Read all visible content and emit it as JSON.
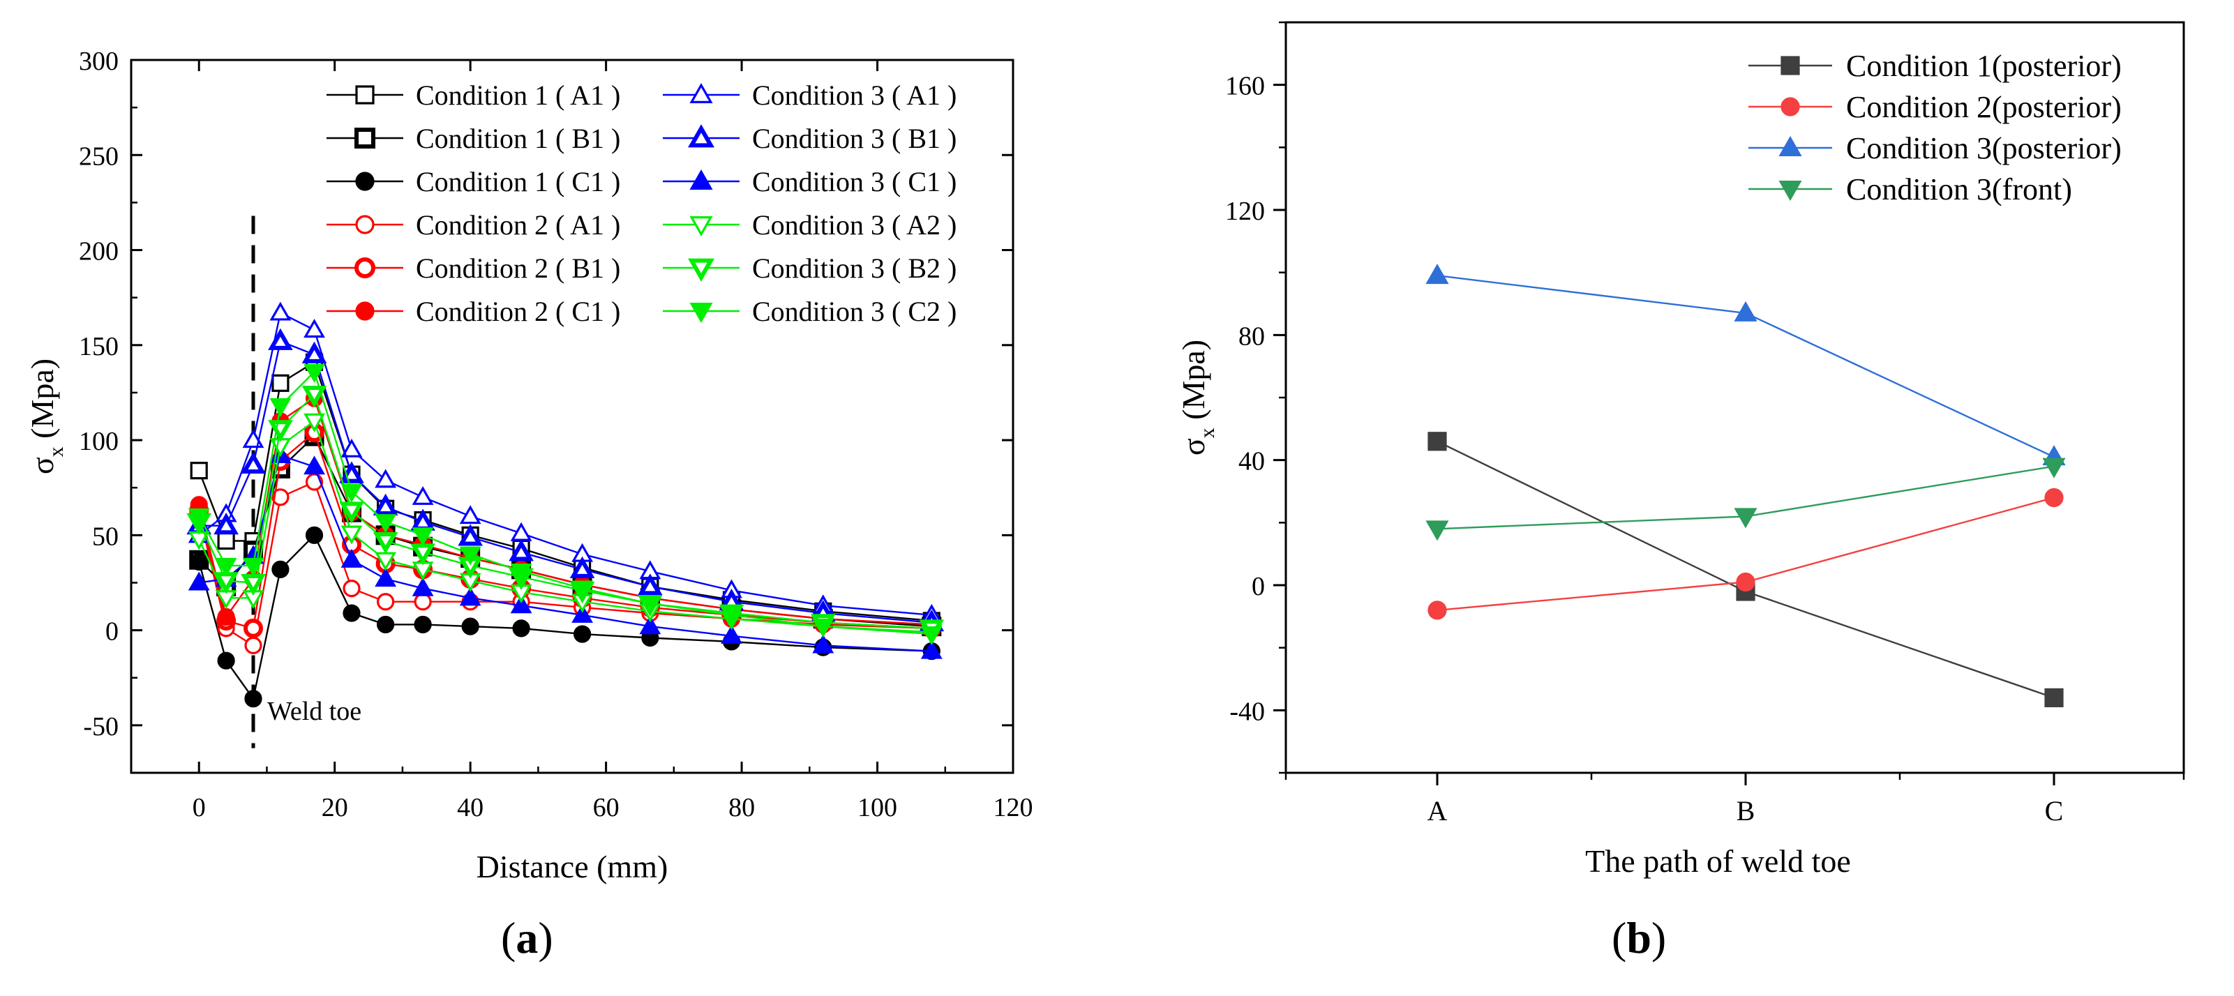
{
  "chart_data": [
    {
      "type": "line",
      "panel_label": "a",
      "xlabel": "Distance (mm)",
      "ylabel_symbol": "σ",
      "ylabel_sub": "x",
      "ylabel_unit": "(Mpa)",
      "xlim": [
        -10,
        120
      ],
      "ylim": [
        -75,
        300
      ],
      "xticks": [
        0,
        20,
        40,
        60,
        80,
        100,
        120
      ],
      "yticks": [
        -50,
        0,
        50,
        100,
        150,
        200,
        250,
        300
      ],
      "annotation": {
        "text": "Weld toe",
        "x": 8
      },
      "x": [
        0,
        4,
        8,
        12,
        17,
        22.5,
        27.5,
        33,
        40,
        47.5,
        56.5,
        66.5,
        78.5,
        92,
        108
      ],
      "series": [
        {
          "name": "Condition 1 ( A1 )",
          "color": "#000000",
          "marker": "square",
          "fill": "open",
          "values": [
            84,
            47,
            47,
            130,
            141,
            82,
            64,
            58,
            50,
            43,
            33,
            23,
            16,
            10,
            5
          ]
        },
        {
          "name": "Condition 1 ( B1 )",
          "color": "#000000",
          "marker": "square",
          "fill": "open-bold",
          "values": [
            37,
            23,
            42,
            85,
            102,
            62,
            50,
            44,
            38,
            32,
            24,
            17,
            11,
            6,
            2
          ]
        },
        {
          "name": "Condition 1 ( C1 )",
          "color": "#000000",
          "marker": "circle",
          "fill": "filled",
          "values": [
            36,
            -16,
            -36,
            32,
            50,
            9,
            3,
            3,
            2,
            1,
            -2,
            -4,
            -6,
            -9,
            -11
          ]
        },
        {
          "name": "Condition 2 ( A1 )",
          "color": "#ff0000",
          "marker": "circle",
          "fill": "open",
          "values": [
            62,
            1,
            -8,
            70,
            78,
            22,
            15,
            15,
            15,
            15,
            12,
            9,
            6,
            3,
            1
          ]
        },
        {
          "name": "Condition 2 ( B1 )",
          "color": "#ff0000",
          "marker": "circle",
          "fill": "open-bold",
          "values": [
            63,
            5,
            1,
            89,
            104,
            45,
            35,
            32,
            27,
            22,
            17,
            12,
            8,
            4,
            1
          ]
        },
        {
          "name": "Condition 2 ( C1 )",
          "color": "#ff0000",
          "marker": "circle",
          "fill": "filled",
          "values": [
            66,
            7,
            27,
            110,
            122,
            62,
            50,
            45,
            38,
            32,
            24,
            17,
            11,
            6,
            3
          ]
        },
        {
          "name": "Condition 3 ( A1 )",
          "color": "#0000ff",
          "marker": "triangle-up",
          "fill": "open",
          "values": [
            50,
            61,
            100,
            167,
            158,
            95,
            79,
            70,
            60,
            51,
            40,
            31,
            21,
            13,
            8
          ]
        },
        {
          "name": "Condition 3 ( B1 )",
          "color": "#0000ff",
          "marker": "triangle-up",
          "fill": "open-bold",
          "values": [
            55,
            55,
            87,
            152,
            145,
            82,
            65,
            57,
            49,
            41,
            32,
            23,
            15,
            9,
            4
          ]
        },
        {
          "name": "Condition 3 ( C1 )",
          "color": "#0000ff",
          "marker": "triangle-up",
          "fill": "filled",
          "values": [
            25,
            27,
            39,
            92,
            86,
            37,
            27,
            22,
            17,
            13,
            8,
            2,
            -3,
            -8,
            -11
          ]
        },
        {
          "name": "Condition 3 ( A2 )",
          "color": "#00ee00",
          "marker": "triangle-down",
          "fill": "open",
          "values": [
            48,
            17,
            17,
            97,
            110,
            51,
            37,
            32,
            26,
            20,
            15,
            10,
            6,
            2,
            -1
          ]
        },
        {
          "name": "Condition 3 ( B2 )",
          "color": "#00ee00",
          "marker": "triangle-down",
          "fill": "open-bold",
          "values": [
            57,
            26,
            25,
            106,
            124,
            63,
            47,
            41,
            34,
            28,
            21,
            14,
            9,
            4,
            1
          ]
        },
        {
          "name": "Condition 3 ( C2 )",
          "color": "#00ee00",
          "marker": "triangle-down",
          "fill": "filled",
          "values": [
            60,
            34,
            34,
            118,
            136,
            73,
            57,
            50,
            40,
            31,
            22,
            14,
            8,
            2,
            -2
          ]
        }
      ]
    },
    {
      "type": "line",
      "panel_label": "b",
      "xlabel": "The path of weld toe",
      "ylabel_symbol": "σ",
      "ylabel_sub": "x",
      "ylabel_unit": "(Mpa)",
      "categories": [
        "A",
        "B",
        "C"
      ],
      "ylim": [
        -60,
        180
      ],
      "yticks": [
        -40,
        0,
        40,
        80,
        120,
        160
      ],
      "series": [
        {
          "name": "Condition 1(posterior)",
          "color": "#3f3f3f",
          "marker": "square",
          "values": [
            46,
            -2,
            -36
          ]
        },
        {
          "name": "Condition 2(posterior)",
          "color": "#f44040",
          "marker": "circle",
          "values": [
            -8,
            1,
            28
          ]
        },
        {
          "name": "Condition 3(posterior)",
          "color": "#2e6fd8",
          "marker": "triangle-up",
          "values": [
            99,
            87,
            41
          ]
        },
        {
          "name": "Condition 3(front)",
          "color": "#2e9c5a",
          "marker": "triangle-down",
          "values": [
            18,
            22,
            38
          ]
        }
      ]
    }
  ]
}
